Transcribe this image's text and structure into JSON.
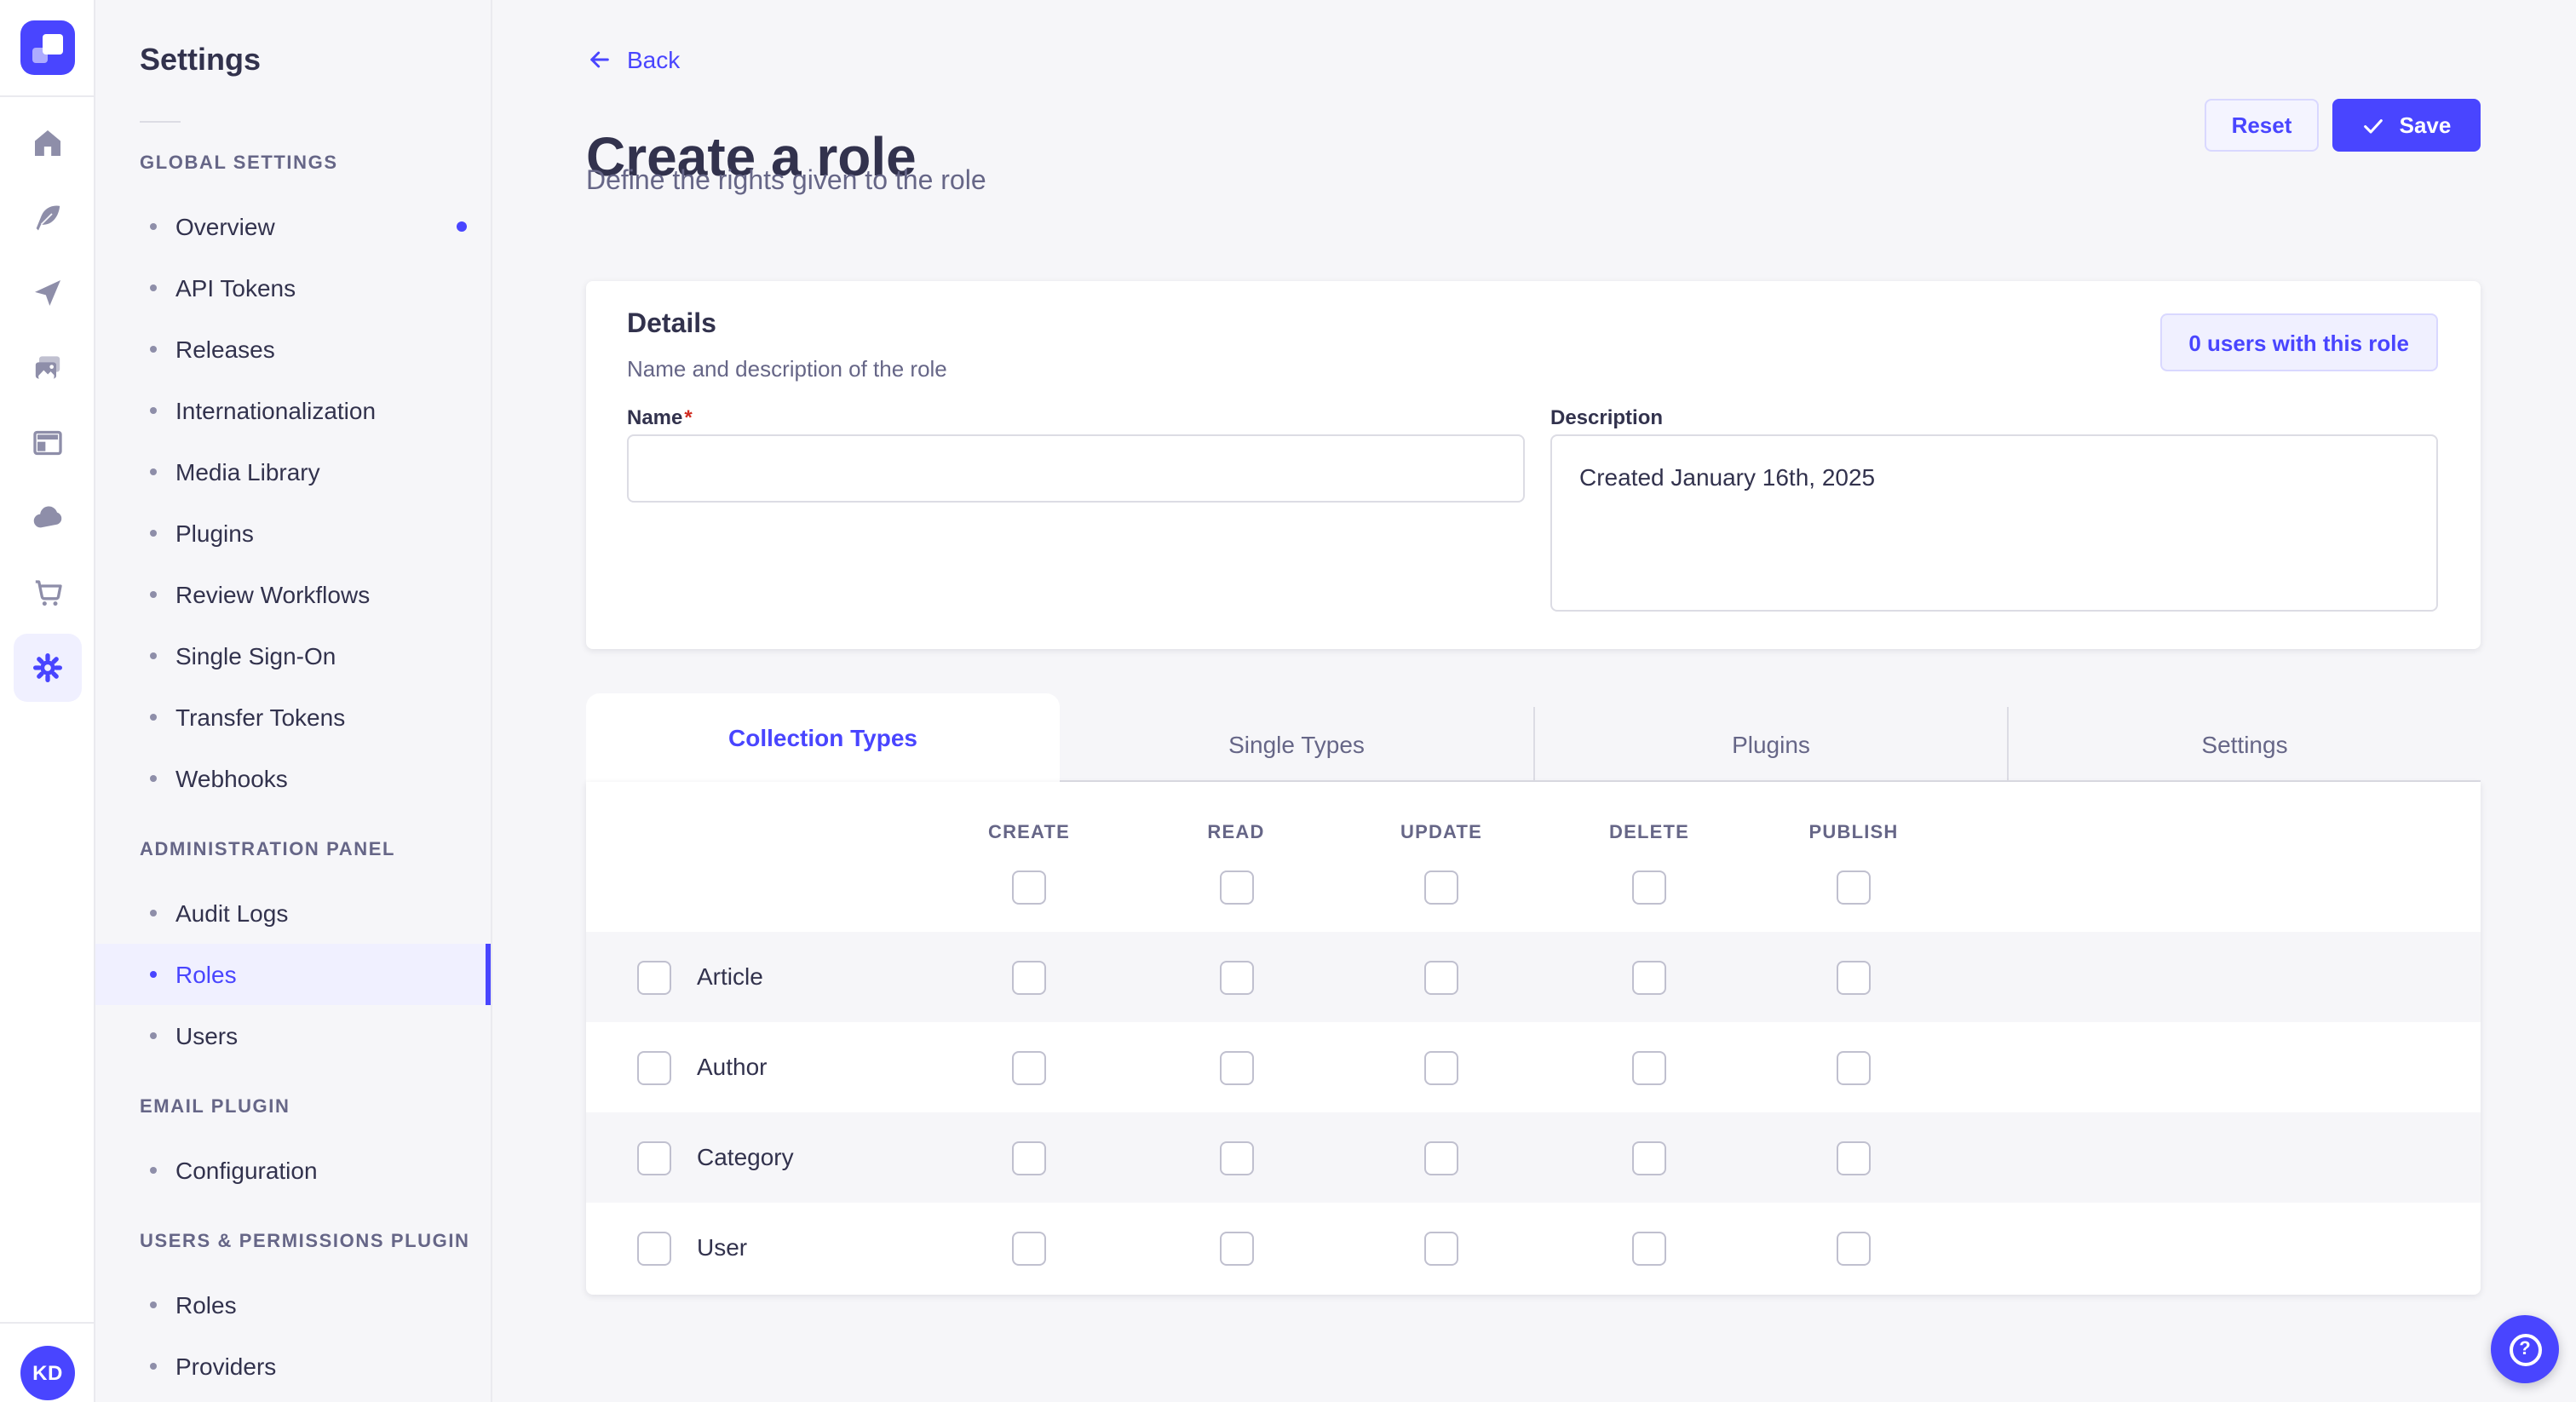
{
  "colors": {
    "accent": "#4945ff",
    "accentLight": "#f0f0ff",
    "accentBorder": "#d9d8ff",
    "text": "#32324d",
    "muted": "#666687",
    "border": "#eaeaef",
    "inputBorder": "#dcdce4",
    "bg": "#f6f6f9",
    "danger": "#d02b20"
  },
  "icon_rail": {
    "icons": [
      {
        "name": "home-icon",
        "active": false
      },
      {
        "name": "feather-icon",
        "active": false
      },
      {
        "name": "send-icon",
        "active": false
      },
      {
        "name": "media-icon",
        "active": false
      },
      {
        "name": "layout-icon",
        "active": false
      },
      {
        "name": "cloud-icon",
        "active": false
      },
      {
        "name": "cart-icon",
        "active": false
      },
      {
        "name": "gear-icon",
        "active": true
      }
    ],
    "avatar_initials": "KD"
  },
  "subnav": {
    "title": "Settings",
    "sections": [
      {
        "label": "GLOBAL SETTINGS",
        "items": [
          {
            "label": "Overview",
            "active": false,
            "notification": true
          },
          {
            "label": "API Tokens",
            "active": false,
            "notification": false
          },
          {
            "label": "Releases",
            "active": false,
            "notification": false
          },
          {
            "label": "Internationalization",
            "active": false,
            "notification": false
          },
          {
            "label": "Media Library",
            "active": false,
            "notification": false
          },
          {
            "label": "Plugins",
            "active": false,
            "notification": false
          },
          {
            "label": "Review Workflows",
            "active": false,
            "notification": false
          },
          {
            "label": "Single Sign-On",
            "active": false,
            "notification": false
          },
          {
            "label": "Transfer Tokens",
            "active": false,
            "notification": false
          },
          {
            "label": "Webhooks",
            "active": false,
            "notification": false
          }
        ]
      },
      {
        "label": "ADMINISTRATION PANEL",
        "items": [
          {
            "label": "Audit Logs",
            "active": false,
            "notification": false
          },
          {
            "label": "Roles",
            "active": true,
            "notification": false
          },
          {
            "label": "Users",
            "active": false,
            "notification": false
          }
        ]
      },
      {
        "label": "EMAIL PLUGIN",
        "items": [
          {
            "label": "Configuration",
            "active": false,
            "notification": false
          }
        ]
      },
      {
        "label": "USERS & PERMISSIONS PLUGIN",
        "items": [
          {
            "label": "Roles",
            "active": false,
            "notification": false
          },
          {
            "label": "Providers",
            "active": false,
            "notification": false
          }
        ]
      }
    ]
  },
  "header": {
    "back_label": "Back",
    "title": "Create a role",
    "subtitle": "Define the rights given to the role",
    "reset_label": "Reset",
    "save_label": "Save"
  },
  "details_card": {
    "title": "Details",
    "subtitle": "Name and description of the role",
    "users_button_label": "0 users with this role",
    "name_label": "Name",
    "required_mark": "*",
    "name_value": "",
    "description_label": "Description",
    "description_value": "Created January 16th, 2025"
  },
  "permissions": {
    "tabs": [
      {
        "label": "Collection Types",
        "active": true
      },
      {
        "label": "Single Types",
        "active": false
      },
      {
        "label": "Plugins",
        "active": false
      },
      {
        "label": "Settings",
        "active": false
      }
    ],
    "columns": [
      "CREATE",
      "READ",
      "UPDATE",
      "DELETE",
      "PUBLISH"
    ],
    "column_select_all": [
      false,
      false,
      false,
      false,
      false
    ],
    "rows": [
      {
        "label": "Article",
        "row_checked": false,
        "checkboxes": [
          false,
          false,
          false,
          false,
          false
        ]
      },
      {
        "label": "Author",
        "row_checked": false,
        "checkboxes": [
          false,
          false,
          false,
          false,
          false
        ]
      },
      {
        "label": "Category",
        "row_checked": false,
        "checkboxes": [
          false,
          false,
          false,
          false,
          false
        ]
      },
      {
        "label": "User",
        "row_checked": false,
        "checkboxes": [
          false,
          false,
          false,
          false,
          false
        ]
      }
    ]
  },
  "help": {
    "label": "?"
  }
}
